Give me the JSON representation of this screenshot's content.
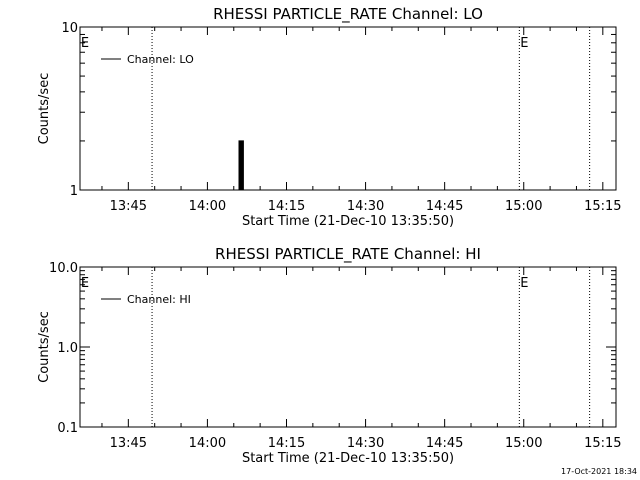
{
  "footer": {
    "timestamp": "17-Oct-2021 18:34"
  },
  "chart_data": [
    {
      "type": "line",
      "title": "RHESSI PARTICLE_RATE Channel: LO",
      "xlabel": "Start Time (21-Dec-10 13:35:50)",
      "ylabel": "Counts/sec",
      "y_scale": "log",
      "ylim": [
        1,
        10
      ],
      "xlim": [
        "13:35:50",
        "15:17:30"
      ],
      "x_ticks": [
        "13:45",
        "14:00",
        "14:15",
        "14:30",
        "14:45",
        "15:00",
        "15:15"
      ],
      "y_ticks": [
        "1",
        "10"
      ],
      "legend": {
        "position": "top-left",
        "label": "Channel: LO"
      },
      "event_markers": [
        {
          "time": "13:35:50",
          "label": "E"
        },
        {
          "time": "14:59:10",
          "label": "E"
        }
      ],
      "dotted_lines": [
        "13:49:30",
        "14:59:10",
        "15:12:30"
      ],
      "series": [
        {
          "name": "Channel: LO",
          "points": [
            [
              "14:06:00",
              1
            ],
            [
              "14:06:00",
              2
            ],
            [
              "14:06:10",
              2
            ],
            [
              "14:06:10",
              1
            ],
            [
              "14:06:20",
              1
            ],
            [
              "14:06:20",
              2
            ],
            [
              "14:06:30",
              2
            ],
            [
              "14:06:30",
              1
            ],
            [
              "14:06:40",
              1
            ],
            [
              "14:06:40",
              2
            ],
            [
              "14:06:50",
              2
            ],
            [
              "14:06:50",
              1
            ]
          ]
        }
      ]
    },
    {
      "type": "line",
      "title": "RHESSI PARTICLE_RATE Channel: HI",
      "xlabel": "Start Time (21-Dec-10 13:35:50)",
      "ylabel": "Counts/sec",
      "y_scale": "log",
      "ylim": [
        0.1,
        10
      ],
      "xlim": [
        "13:35:50",
        "15:17:30"
      ],
      "x_ticks": [
        "13:45",
        "14:00",
        "14:15",
        "14:30",
        "14:45",
        "15:00",
        "15:15"
      ],
      "y_ticks": [
        "0.1",
        "1.0",
        "10.0"
      ],
      "legend": {
        "position": "top-left",
        "label": "Channel: HI"
      },
      "event_markers": [
        {
          "time": "13:35:50",
          "label": "E"
        },
        {
          "time": "14:59:10",
          "label": "E"
        }
      ],
      "dotted_lines": [
        "13:49:30",
        "14:59:10",
        "15:12:30"
      ],
      "series": [
        {
          "name": "Channel: HI",
          "points": []
        }
      ]
    }
  ]
}
